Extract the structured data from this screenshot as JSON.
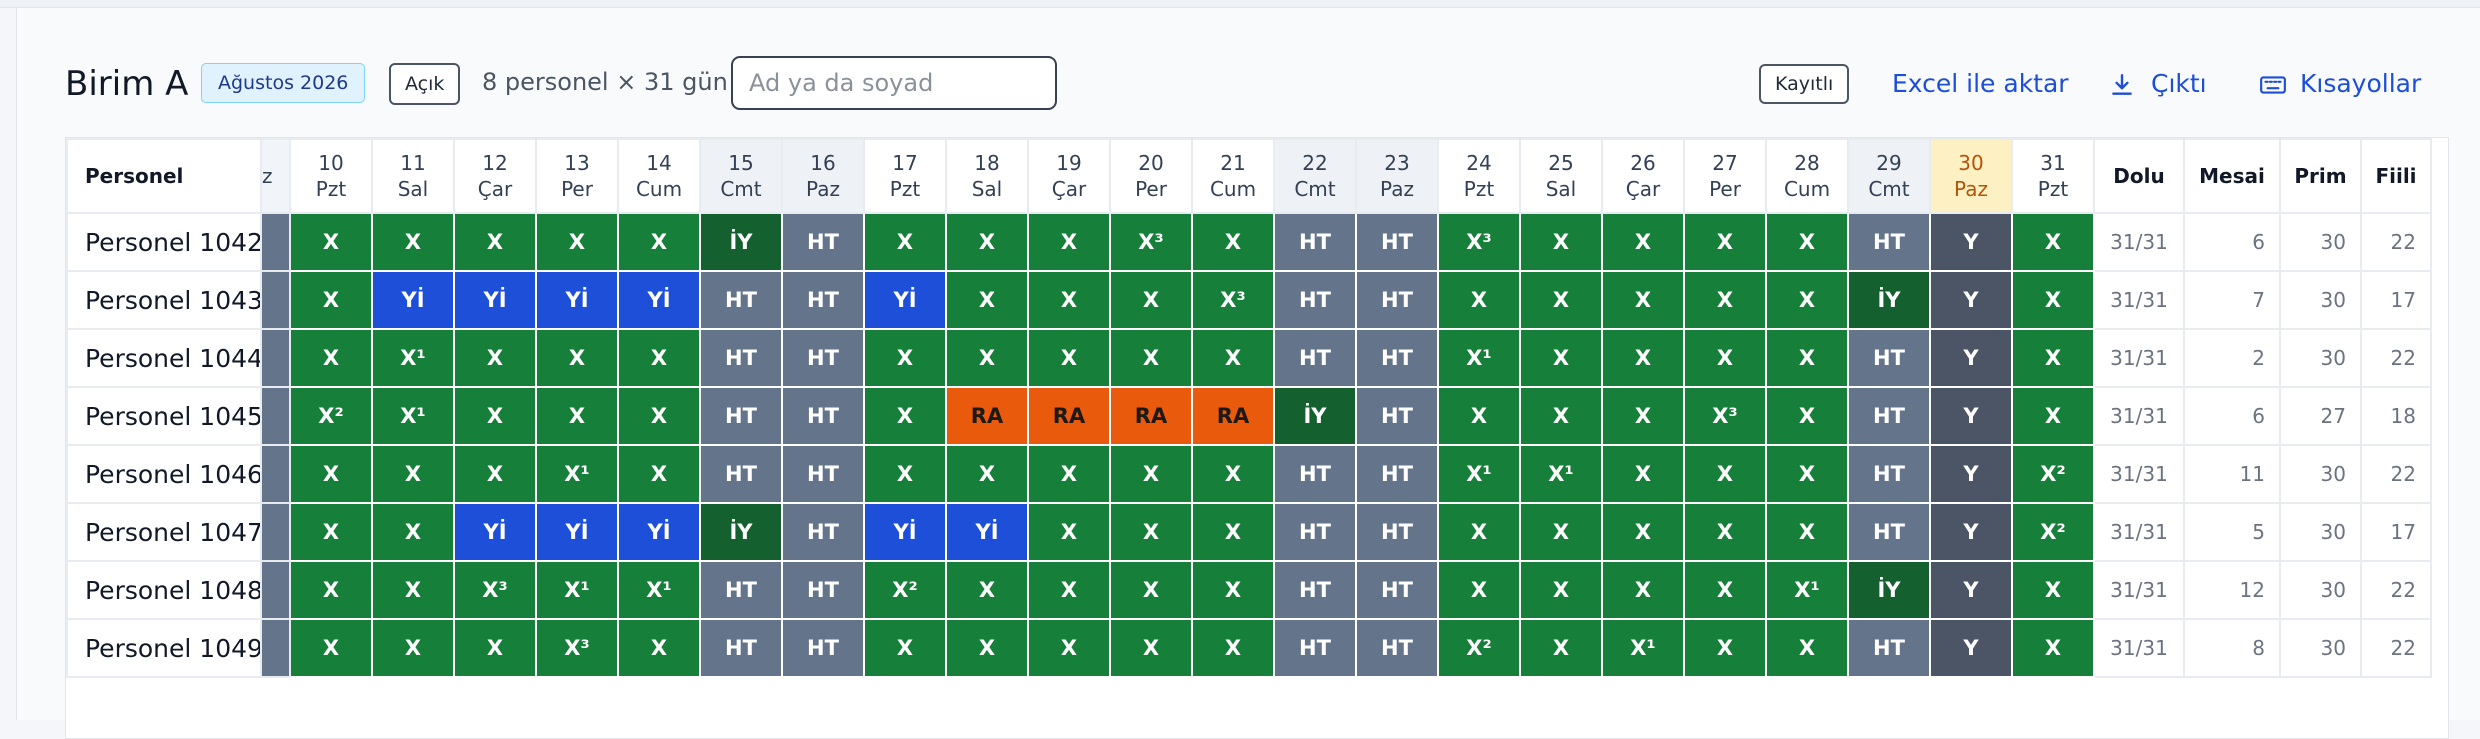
{
  "header": {
    "title": "Birim A",
    "period": "Ağustos 2026",
    "status": "Açık",
    "summary": "8 personel × 31 gün",
    "search_placeholder": "Ad ya da soyad",
    "saved": "Kayıtlı",
    "actions": [
      "Excel ile aktar",
      "Çıktı",
      "Kısayollar"
    ]
  },
  "table": {
    "name_header": "Personel",
    "scrolled_label": "z",
    "days": [
      {
        "day": 10,
        "weekday": "Pzt"
      },
      {
        "day": 11,
        "weekday": "Sal"
      },
      {
        "day": 12,
        "weekday": "Çar"
      },
      {
        "day": 13,
        "weekday": "Per"
      },
      {
        "day": 14,
        "weekday": "Cum"
      },
      {
        "day": 15,
        "weekday": "Cmt",
        "weekend": true
      },
      {
        "day": 16,
        "weekday": "Paz",
        "weekend": true
      },
      {
        "day": 17,
        "weekday": "Pzt"
      },
      {
        "day": 18,
        "weekday": "Sal"
      },
      {
        "day": 19,
        "weekday": "Çar"
      },
      {
        "day": 20,
        "weekday": "Per"
      },
      {
        "day": 21,
        "weekday": "Cum"
      },
      {
        "day": 22,
        "weekday": "Cmt",
        "weekend": true
      },
      {
        "day": 23,
        "weekday": "Paz",
        "weekend": true
      },
      {
        "day": 24,
        "weekday": "Pzt"
      },
      {
        "day": 25,
        "weekday": "Sal"
      },
      {
        "day": 26,
        "weekday": "Çar"
      },
      {
        "day": 27,
        "weekday": "Per"
      },
      {
        "day": 28,
        "weekday": "Cum"
      },
      {
        "day": 29,
        "weekday": "Cmt",
        "weekend": true
      },
      {
        "day": 30,
        "weekday": "Paz",
        "weekend": true
      },
      {
        "day": 31,
        "weekday": "Pzt"
      }
    ],
    "today": 30,
    "summary_headers": [
      "Dolu",
      "Mesai",
      "Prim",
      "Fiili"
    ],
    "code_colors": {
      "X": {
        "bg": "#16803a",
        "fg": "#ffffff"
      },
      "Yİ": {
        "bg": "#1d4fd8",
        "fg": "#ffffff"
      },
      "HT": {
        "bg": "#64748b",
        "fg": "#ffffff"
      },
      "İY": {
        "bg": "#14602f",
        "fg": "#ffffff"
      },
      "RA": {
        "bg": "#ea5a0c",
        "fg": "#1c1917"
      },
      "Y": {
        "bg": "#4b5565",
        "fg": "#ffffff"
      }
    },
    "rows": [
      {
        "name": "Personel 1042",
        "cells": [
          "X",
          "X",
          "X",
          "X",
          "X",
          "İY",
          "HT",
          "X",
          "X",
          "X",
          "X³",
          "X",
          "HT",
          "HT",
          "X³",
          "X",
          "X",
          "X",
          "X",
          "HT",
          "Y",
          "X"
        ],
        "dolu": "31/31",
        "mesai": 6,
        "prim": 30,
        "fiili": 22
      },
      {
        "name": "Personel 1043",
        "cells": [
          "X",
          "Yİ",
          "Yİ",
          "Yİ",
          "Yİ",
          "HT",
          "HT",
          "Yİ",
          "X",
          "X",
          "X",
          "X³",
          "HT",
          "HT",
          "X",
          "X",
          "X",
          "X",
          "X",
          "İY",
          "Y",
          "X"
        ],
        "dolu": "31/31",
        "mesai": 7,
        "prim": 30,
        "fiili": 17
      },
      {
        "name": "Personel 1044",
        "cells": [
          "X",
          "X¹",
          "X",
          "X",
          "X",
          "HT",
          "HT",
          "X",
          "X",
          "X",
          "X",
          "X",
          "HT",
          "HT",
          "X¹",
          "X",
          "X",
          "X",
          "X",
          "HT",
          "Y",
          "X"
        ],
        "dolu": "31/31",
        "mesai": 2,
        "prim": 30,
        "fiili": 22
      },
      {
        "name": "Personel 1045",
        "cells": [
          "X²",
          "X¹",
          "X",
          "X",
          "X",
          "HT",
          "HT",
          "X",
          "RA",
          "RA",
          "RA",
          "RA",
          "İY",
          "HT",
          "X",
          "X",
          "X",
          "X³",
          "X",
          "HT",
          "Y",
          "X"
        ],
        "dolu": "31/31",
        "mesai": 6,
        "prim": 27,
        "fiili": 18
      },
      {
        "name": "Personel 1046",
        "cells": [
          "X",
          "X",
          "X",
          "X¹",
          "X",
          "HT",
          "HT",
          "X",
          "X",
          "X",
          "X",
          "X",
          "HT",
          "HT",
          "X¹",
          "X¹",
          "X",
          "X",
          "X",
          "HT",
          "Y",
          "X²"
        ],
        "dolu": "31/31",
        "mesai": 11,
        "prim": 30,
        "fiili": 22
      },
      {
        "name": "Personel 1047",
        "cells": [
          "X",
          "X",
          "Yİ",
          "Yİ",
          "Yİ",
          "İY",
          "HT",
          "Yİ",
          "Yİ",
          "X",
          "X",
          "X",
          "HT",
          "HT",
          "X",
          "X",
          "X",
          "X",
          "X",
          "HT",
          "Y",
          "X²"
        ],
        "dolu": "31/31",
        "mesai": 5,
        "prim": 30,
        "fiili": 17
      },
      {
        "name": "Personel 1048",
        "cells": [
          "X",
          "X",
          "X³",
          "X¹",
          "X¹",
          "HT",
          "HT",
          "X²",
          "X",
          "X",
          "X",
          "X",
          "HT",
          "HT",
          "X",
          "X",
          "X",
          "X",
          "X¹",
          "İY",
          "Y",
          "X"
        ],
        "dolu": "31/31",
        "mesai": 12,
        "prim": 30,
        "fiili": 22
      },
      {
        "name": "Personel 1049",
        "cells": [
          "X",
          "X",
          "X",
          "X³",
          "X",
          "HT",
          "HT",
          "X",
          "X",
          "X",
          "X",
          "X",
          "HT",
          "HT",
          "X²",
          "X",
          "X¹",
          "X",
          "X",
          "HT",
          "Y",
          "X"
        ],
        "dolu": "31/31",
        "mesai": 8,
        "prim": 30,
        "fiili": 22
      }
    ]
  }
}
